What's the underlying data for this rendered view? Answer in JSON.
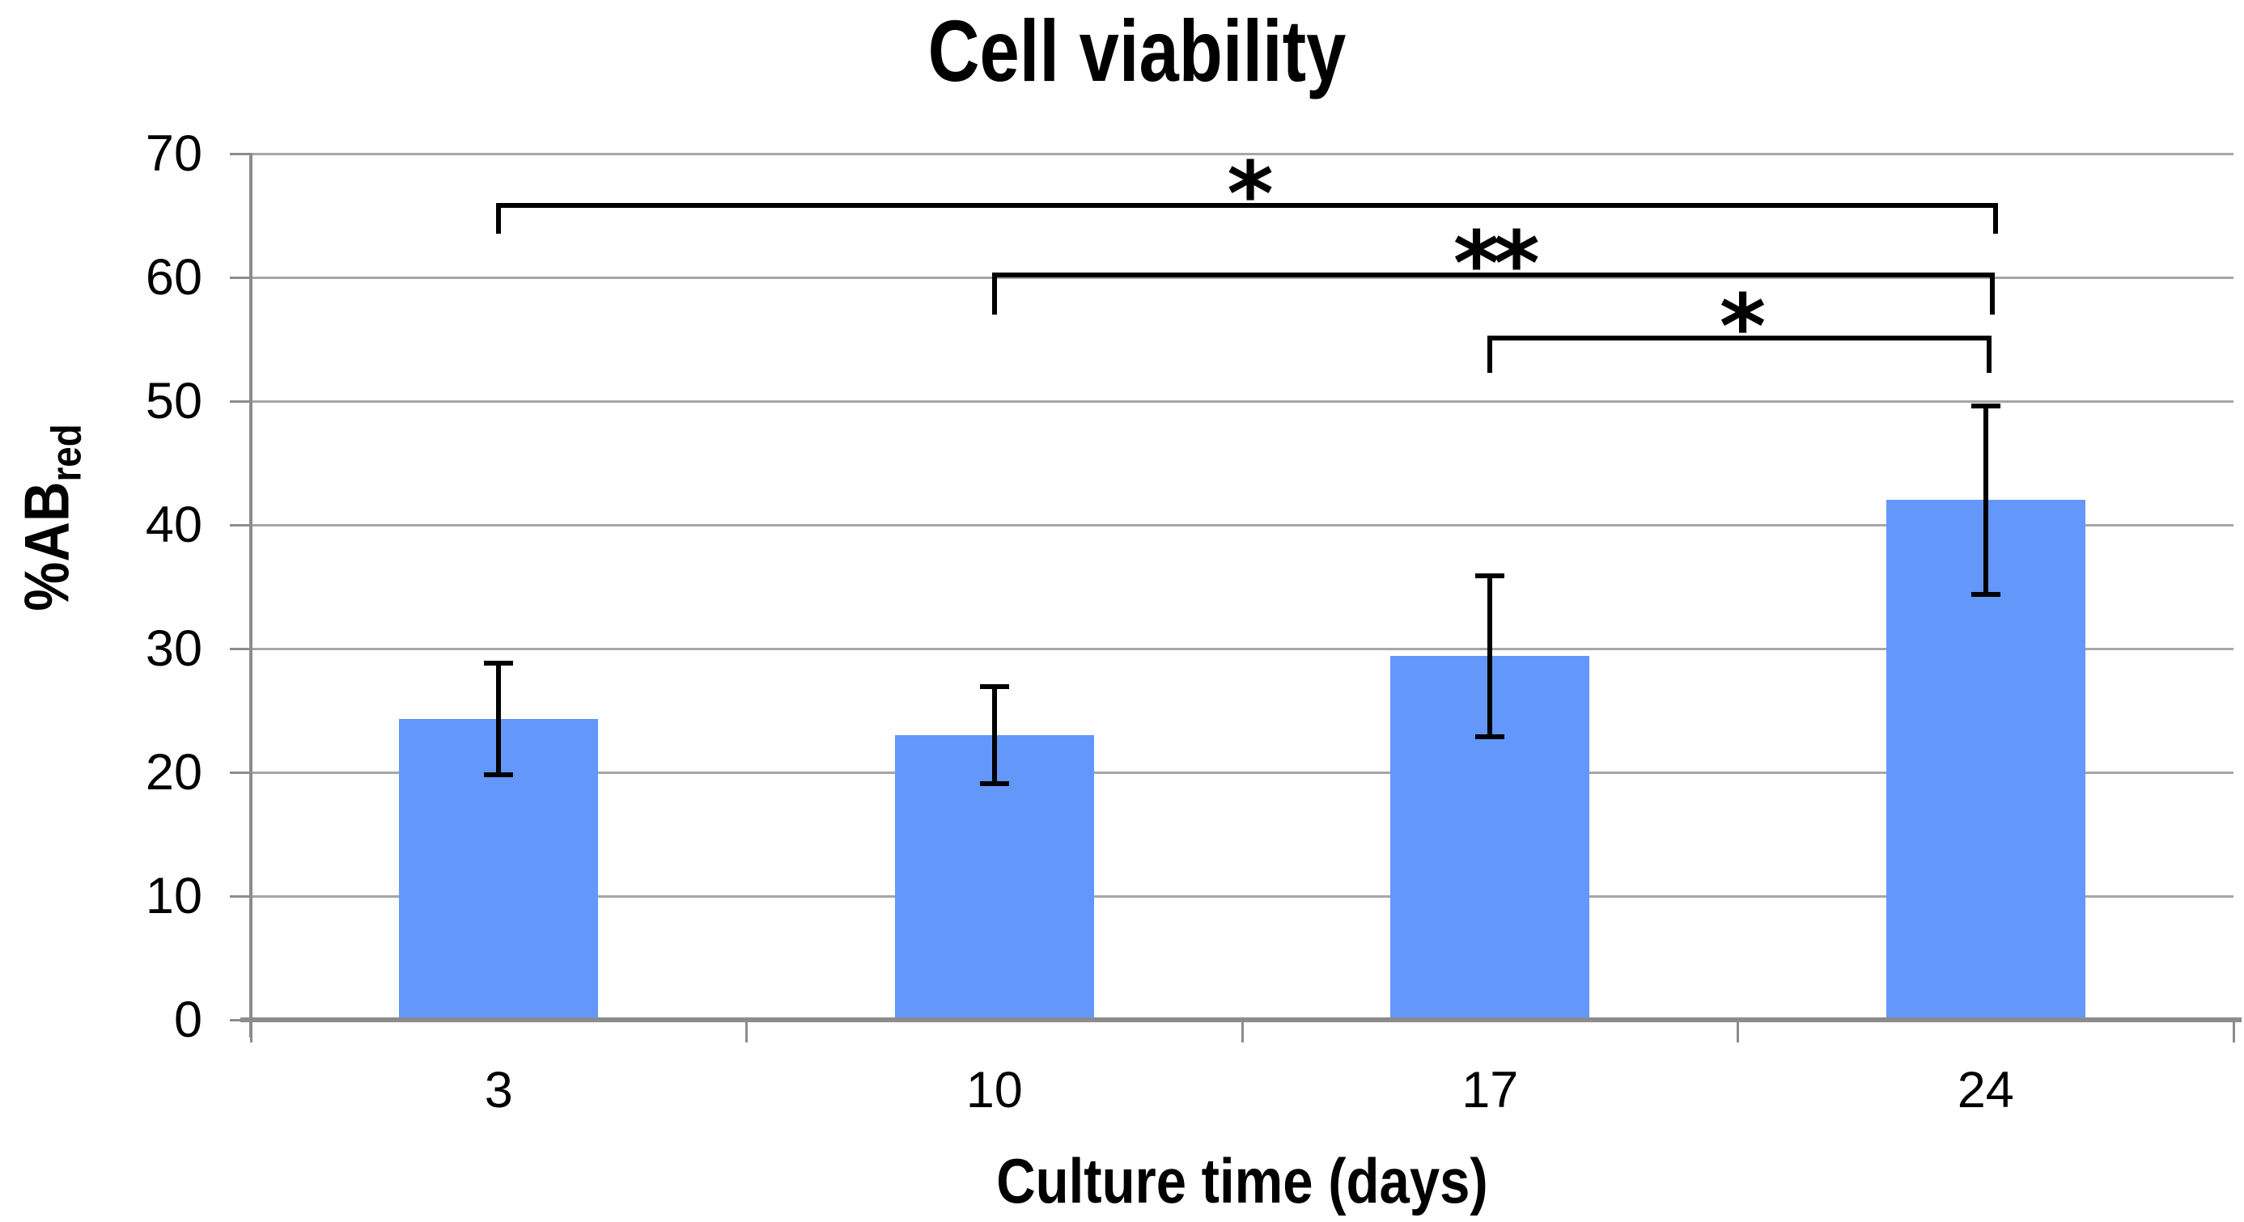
{
  "title": "Cell viability",
  "y_axis": {
    "label_main": "%AB",
    "label_sub": "red",
    "tick_labels": [
      "0",
      "10",
      "20",
      "30",
      "40",
      "50",
      "60",
      "70"
    ]
  },
  "x_axis": {
    "label": "Culture time (days)",
    "tick_labels": [
      "3",
      "10",
      "17",
      "24"
    ]
  },
  "chart_data": {
    "type": "bar",
    "title": "Cell viability",
    "xlabel": "Culture time (days)",
    "ylabel": "%AB_red",
    "categories": [
      "3",
      "10",
      "17",
      "24"
    ],
    "values": [
      24.3,
      23.0,
      29.4,
      42.0
    ],
    "error_bars": [
      4.5,
      3.9,
      6.5,
      7.6
    ],
    "ylim": [
      0,
      70
    ],
    "ytick_step": 10,
    "grid": true,
    "legend": "none",
    "bar_color": "#6397FA",
    "significance_brackets": [
      {
        "from_category": "3",
        "to_category": "24",
        "label": "*",
        "line_value": 66.0,
        "drop": 2.5
      },
      {
        "from_category": "10",
        "to_category": "24",
        "label": "**",
        "line_value": 60.4,
        "drop": 3.4
      },
      {
        "from_category": "17",
        "to_category": "24",
        "label": "*",
        "line_value": 55.3,
        "drop": 3.0
      }
    ]
  },
  "colors": {
    "bar": "#6397FA",
    "gridline": "#A6A6A6",
    "axis": "#8C8C8C",
    "annotation": "#000000",
    "text": "#000000",
    "background": "#FFFFFF"
  }
}
